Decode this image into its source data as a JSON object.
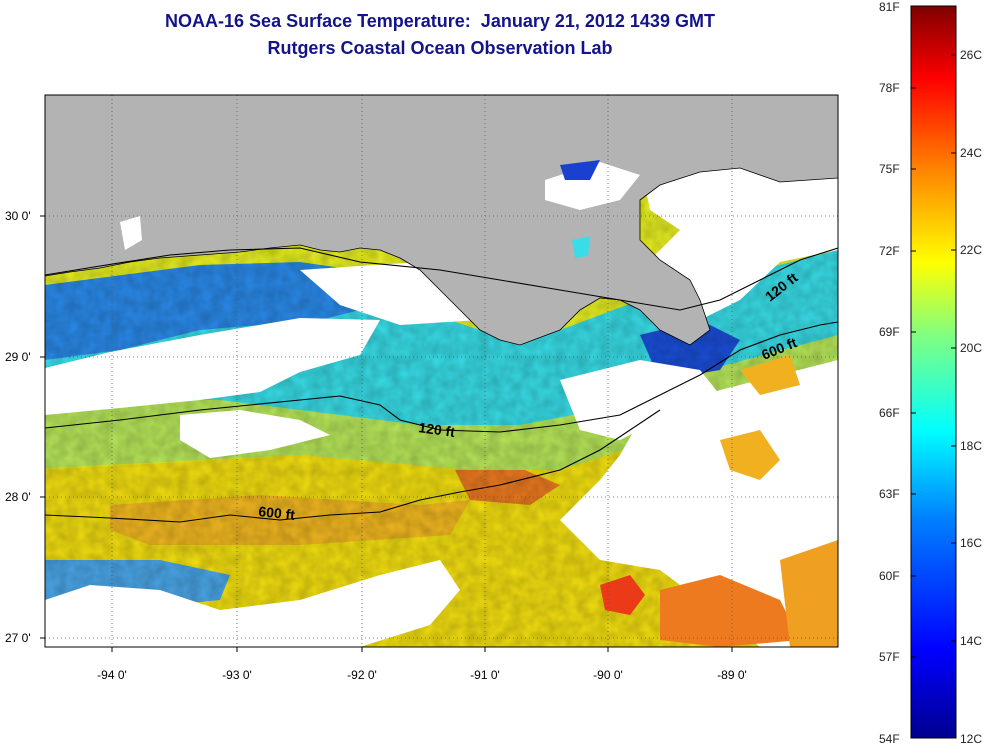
{
  "header": {
    "title_line1": "NOAA-16 Sea Surface Temperature:  January 21, 2012 1439 GMT",
    "title_line2": "Rutgers Coastal Ocean Observation Lab"
  },
  "axes": {
    "y_ticks": [
      {
        "value": 27.0,
        "label": "27 0'"
      },
      {
        "value": 28.0,
        "label": "28 0'"
      },
      {
        "value": 29.0,
        "label": "29 0'"
      },
      {
        "value": 30.0,
        "label": "30 0'"
      }
    ],
    "x_ticks": [
      {
        "value": -94.0,
        "label": "-94 0'"
      },
      {
        "value": -93.0,
        "label": "-93 0'"
      },
      {
        "value": -92.0,
        "label": "-92 0'"
      },
      {
        "value": -91.0,
        "label": "-91 0'"
      },
      {
        "value": -90.0,
        "label": "-90 0'"
      },
      {
        "value": -89.0,
        "label": "-89 0'"
      }
    ]
  },
  "contours": [
    {
      "label": "120 ft"
    },
    {
      "label": "600 ft"
    },
    {
      "label": "120 ft"
    },
    {
      "label": "600 ft"
    }
  ],
  "colorbar": {
    "fahrenheit_labels": [
      "81F",
      "78F",
      "75F",
      "72F",
      "69F",
      "66F",
      "63F",
      "60F",
      "57F",
      "54F"
    ],
    "celsius_labels": [
      "26C",
      "24C",
      "22C",
      "20C",
      "18C",
      "16C",
      "14C",
      "12C"
    ],
    "colors": [
      "#00008f",
      "#0000ff",
      "#0080ff",
      "#00ffff",
      "#80ff80",
      "#ffff00",
      "#ff8000",
      "#ff0000",
      "#800000"
    ]
  },
  "colors": {
    "land": "#b3b3b3",
    "cloud": "#ffffff",
    "title": "#14148a"
  }
}
